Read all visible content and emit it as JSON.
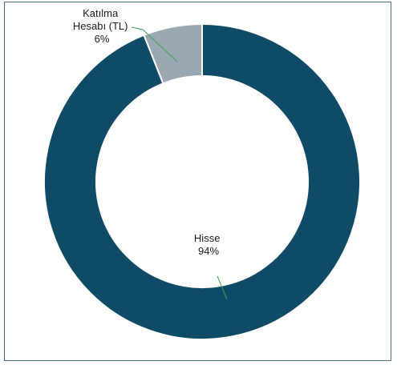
{
  "chart_data": {
    "type": "pie",
    "title": "",
    "donut": true,
    "slices": [
      {
        "label_lines": [
          "Hisse",
          "94%"
        ],
        "value": 94,
        "color": "#0f4a66"
      },
      {
        "label_lines": [
          "Katılma",
          "Hesabı (TL)",
          "6%"
        ],
        "value": 6,
        "color": "#9aa8b3"
      }
    ],
    "leader_color": "#3fa34d",
    "legend": "none"
  }
}
